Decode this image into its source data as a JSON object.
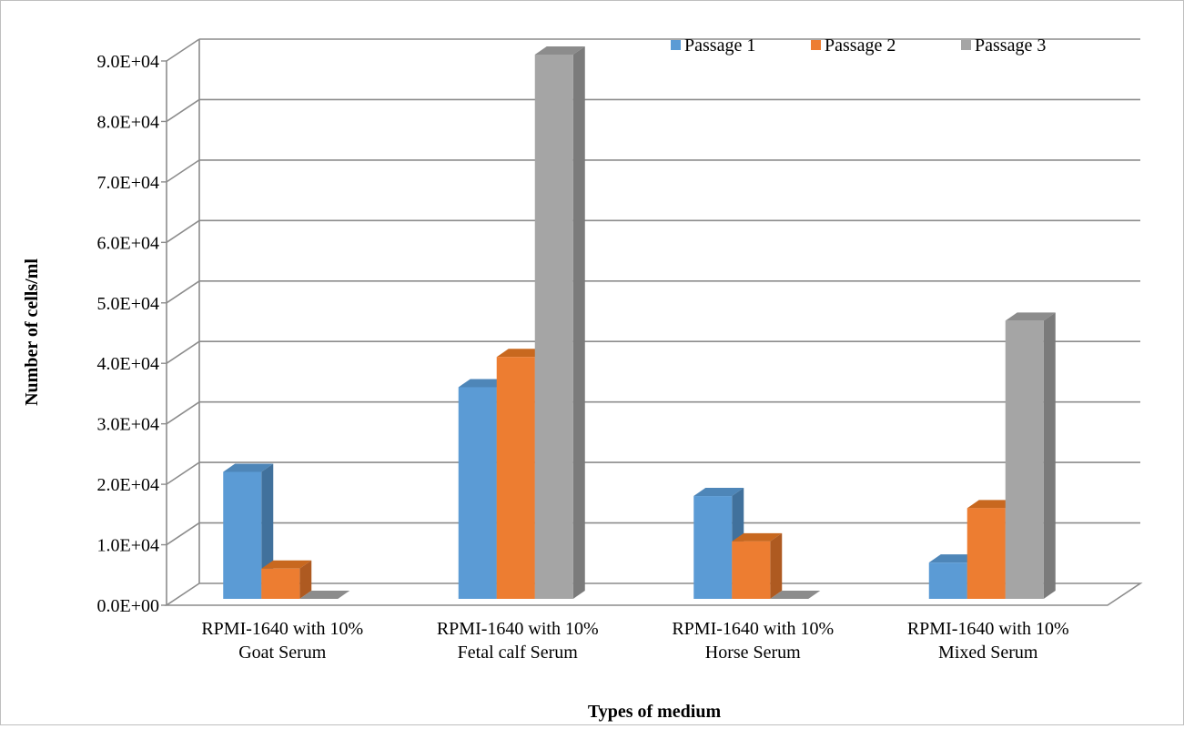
{
  "chart_data": {
    "type": "bar",
    "style": "3d-clustered-column",
    "categories": [
      [
        "RPMI-1640 with 10%",
        "Goat Serum"
      ],
      [
        "RPMI-1640 with 10%",
        "Fetal calf Serum"
      ],
      [
        "RPMI-1640 with 10%",
        "Horse Serum"
      ],
      [
        "RPMI-1640 with 10%",
        "Mixed Serum"
      ]
    ],
    "series": [
      {
        "name": "Passage 1",
        "values": [
          21000,
          35000,
          17000,
          6000
        ],
        "color": "#5B9BD5",
        "side": "#41719C",
        "top": "#4E86B8"
      },
      {
        "name": "Passage 2",
        "values": [
          5000,
          40000,
          9500,
          15000
        ],
        "color": "#ED7D31",
        "side": "#AE5A21",
        "top": "#C8681F"
      },
      {
        "name": "Passage 3",
        "values": [
          0,
          90000,
          0,
          46000
        ],
        "color": "#A5A5A5",
        "side": "#7B7B7B",
        "top": "#8C8C8C"
      }
    ],
    "yticks": [
      "0.0E+00",
      "1.0E+04",
      "2.0E+04",
      "3.0E+04",
      "4.0E+04",
      "5.0E+04",
      "6.0E+04",
      "7.0E+04",
      "8.0E+04",
      "9.0E+04"
    ],
    "ylim": [
      0,
      90000
    ],
    "xlabel": "Types of medium",
    "ylabel": "Number of cells/ml",
    "grid": true,
    "legend": "top-right"
  }
}
